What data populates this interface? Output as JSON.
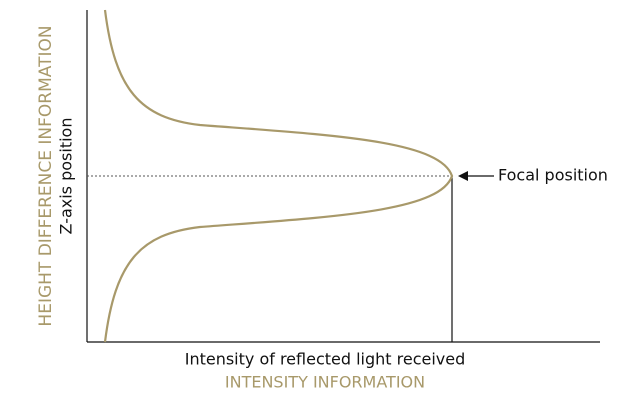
{
  "axes": {
    "y_category": "HEIGHT DIFFERENCE INFORMATION",
    "y_label": "Z-axis position",
    "x_label": "Intensity of reflected light received",
    "x_category": "INTENSITY INFORMATION"
  },
  "annotation": "Focal position"
}
